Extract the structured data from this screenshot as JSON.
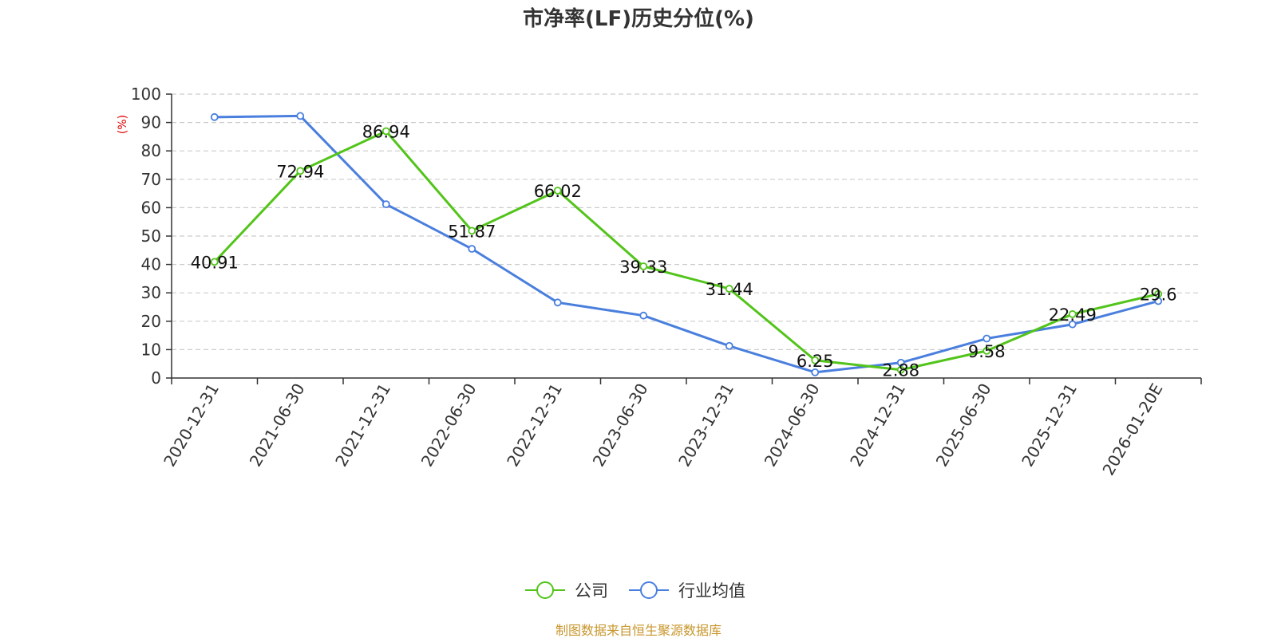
{
  "chart_data": {
    "type": "line",
    "title": "市净率(LF)历史分位(%)",
    "ylabel": "(%)",
    "xlabel": "",
    "ylim": [
      0,
      100
    ],
    "yticks": [
      0,
      10,
      20,
      30,
      40,
      50,
      60,
      70,
      80,
      90,
      100
    ],
    "grid": true,
    "legend_position": "bottom",
    "categories": [
      "2020-12-31",
      "2021-06-30",
      "2021-12-31",
      "2022-06-30",
      "2022-12-31",
      "2023-06-30",
      "2023-12-31",
      "2024-06-30",
      "2024-12-31",
      "2025-06-30",
      "2025-12-31",
      "2026-01-20E"
    ],
    "series": [
      {
        "name": "公司",
        "color": "#52c41a",
        "values": [
          40.91,
          72.94,
          86.94,
          51.87,
          66.02,
          39.33,
          31.44,
          6.25,
          2.88,
          9.58,
          22.49,
          29.6
        ],
        "labels": [
          "40.91",
          "72.94",
          "86.94",
          "51.87",
          "66.02",
          "39.33",
          "31.44",
          "6.25",
          "2.88",
          "9.58",
          "22.49",
          "29.6"
        ]
      },
      {
        "name": "行业均值",
        "color": "#4a7fde",
        "values": [
          91.9,
          92.3,
          61.2,
          45.5,
          26.6,
          22.0,
          11.3,
          2.0,
          5.4,
          13.9,
          18.9,
          27.1
        ]
      }
    ],
    "source": "制图数据来自恒生聚源数据库"
  },
  "colors": {
    "unit_label": "#e00000",
    "source_text": "#c8962c",
    "grid": "#cccccc",
    "axis": "#333333"
  }
}
